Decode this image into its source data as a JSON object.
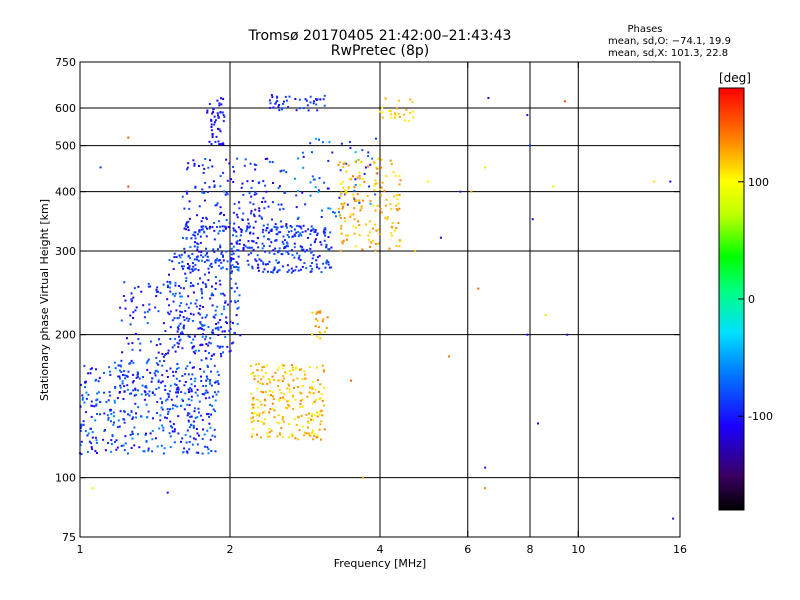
{
  "header": {
    "title_line1": "Tromsø 20170405 21:42:00–21:43:43",
    "title_line2": "RwPretec (8p)",
    "stats_title": "Phases",
    "stats_line1": "mean, sd,O: −74.1, 19.9",
    "stats_line2": "mean, sd,X: 101.3, 22.8"
  },
  "chart_data": {
    "type": "scatter",
    "title": "Tromsø 20170405 21:42:00–21:43:43",
    "subtitle": "RwPretec (8p)",
    "xlabel": "Frequency [MHz]",
    "ylabel": "Stationary phase Virtual Height [km]",
    "x_scale": "log",
    "y_scale": "log",
    "xlim": [
      1,
      16
    ],
    "ylim": [
      75,
      750
    ],
    "x_ticks": [
      1,
      2,
      4,
      6,
      8,
      10,
      16
    ],
    "x_tick_labels": [
      "1",
      "2",
      "4",
      "6",
      "8",
      "10",
      "16"
    ],
    "x_gridlines": [
      2,
      4,
      6,
      8,
      10
    ],
    "y_ticks": [
      75,
      100,
      200,
      300,
      400,
      500,
      600,
      750
    ],
    "y_tick_labels": [
      "75",
      "100",
      "200",
      "300",
      "400",
      "500",
      "600",
      "750"
    ],
    "y_gridlines": [
      100,
      200,
      300,
      400,
      500,
      600
    ],
    "grid": true,
    "colorbar": {
      "label": "[deg]",
      "range": [
        -180,
        180
      ],
      "ticks": [
        100,
        0,
        -100
      ],
      "tick_labels": [
        "100",
        "0",
        "-100"
      ],
      "colormap": "rainbow"
    },
    "series": [
      {
        "mode": "O",
        "clusters": [
          {
            "f_range": [
              1.0,
              1.9
            ],
            "h_range": [
              112,
              175
            ],
            "phase_range": [
              -115,
              -55
            ],
            "n": 420
          },
          {
            "f_range": [
              1.2,
              1.9
            ],
            "h_range": [
              150,
              260
            ],
            "phase_range": [
              -120,
              -70
            ],
            "n": 180
          },
          {
            "f_range": [
              1.6,
              3.2
            ],
            "h_range": [
              270,
              340
            ],
            "phase_range": [
              -115,
              -65
            ],
            "n": 360
          },
          {
            "f_range": [
              1.5,
              2.1
            ],
            "h_range": [
              180,
              300
            ],
            "phase_range": [
              -120,
              -60
            ],
            "n": 200
          },
          {
            "f_range": [
              1.6,
              2.6
            ],
            "h_range": [
              330,
              470
            ],
            "phase_range": [
              -125,
              -70
            ],
            "n": 160
          },
          {
            "f_range": [
              1.8,
              1.95
            ],
            "h_range": [
              500,
              640
            ],
            "phase_range": [
              -120,
              -90
            ],
            "n": 50
          },
          {
            "f_range": [
              2.4,
              3.1
            ],
            "h_range": [
              590,
              640
            ],
            "phase_range": [
              -115,
              -70
            ],
            "n": 45
          },
          {
            "f_range": [
              2.7,
              4.0
            ],
            "h_range": [
              350,
              520
            ],
            "phase_range": [
              -110,
              -40
            ],
            "n": 70
          }
        ]
      },
      {
        "mode": "X",
        "clusters": [
          {
            "f_range": [
              2.2,
              3.1
            ],
            "h_range": [
              120,
              175
            ],
            "phase_range": [
              95,
              140
            ],
            "n": 240
          },
          {
            "f_range": [
              3.3,
              4.4
            ],
            "h_range": [
              300,
              470
            ],
            "phase_range": [
              105,
              140
            ],
            "n": 160
          },
          {
            "f_range": [
              4.0,
              4.7
            ],
            "h_range": [
              560,
              630
            ],
            "phase_range": [
              95,
              130
            ],
            "n": 25
          },
          {
            "f_range": [
              2.9,
              3.15
            ],
            "h_range": [
              195,
              225
            ],
            "phase_range": [
              110,
              140
            ],
            "n": 20
          }
        ]
      },
      {
        "mode": "sparse",
        "points": [
          [
            1.06,
            95,
            80
          ],
          [
            1.1,
            450,
            -90
          ],
          [
            1.25,
            520,
            150
          ],
          [
            1.25,
            410,
            160
          ],
          [
            1.5,
            93,
            -110
          ],
          [
            6.3,
            250,
            150
          ],
          [
            6.5,
            95,
            140
          ],
          [
            6.5,
            105,
            -100
          ],
          [
            6.5,
            450,
            80
          ],
          [
            6.6,
            630,
            -120
          ],
          [
            7.9,
            200,
            -110
          ],
          [
            7.9,
            580,
            -100
          ],
          [
            8.0,
            500,
            -90
          ],
          [
            8.1,
            350,
            -105
          ],
          [
            8.6,
            220,
            110
          ],
          [
            8.9,
            410,
            90
          ],
          [
            9.4,
            620,
            160
          ],
          [
            9.5,
            200,
            -120
          ],
          [
            5.5,
            180,
            140
          ],
          [
            5.3,
            320,
            -110
          ],
          [
            14.2,
            420,
            110
          ],
          [
            15.3,
            420,
            -110
          ],
          [
            15.5,
            82,
            -100
          ],
          [
            5.8,
            400,
            -100
          ],
          [
            4.7,
            300,
            120
          ],
          [
            3.7,
            100,
            130
          ],
          [
            3.5,
            160,
            150
          ],
          [
            8.3,
            130,
            -110
          ],
          [
            6.1,
            400,
            130
          ],
          [
            5.0,
            420,
            100
          ]
        ]
      }
    ]
  }
}
